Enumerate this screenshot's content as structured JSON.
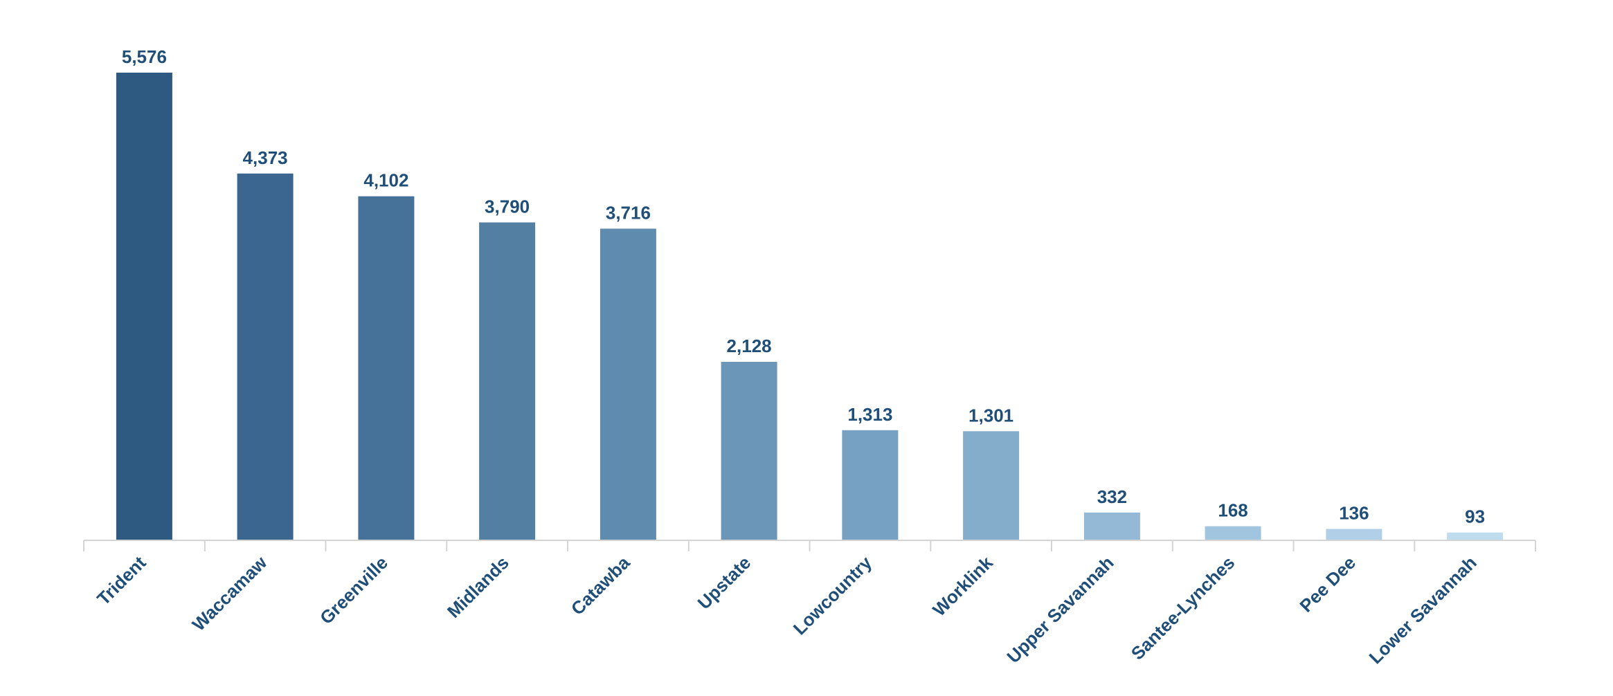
{
  "chart_data": {
    "type": "bar",
    "title": "",
    "xlabel": "",
    "ylabel": "",
    "categories": [
      "Trident",
      "Waccamaw",
      "Greenville",
      "Midlands",
      "Catawba",
      "Upstate",
      "Lowcountry",
      "Worklink",
      "Upper Savannah",
      "Santee-Lynches",
      "Pee Dee",
      "Lower Savannah"
    ],
    "values": [
      5576,
      4373,
      4102,
      3790,
      3716,
      2128,
      1313,
      1301,
      332,
      168,
      136,
      93
    ],
    "value_labels": [
      "5,576",
      "4,373",
      "4,102",
      "3,790",
      "3,716",
      "2,128",
      "1,313",
      "1,301",
      "332",
      "168",
      "136",
      "93"
    ],
    "ylim": [
      0,
      5576
    ],
    "grid": false,
    "legend": "none",
    "bar_colors": [
      "#2e5a82",
      "#3a6690",
      "#46729a",
      "#527fa2",
      "#5f8bae",
      "#6b96b8",
      "#77a1c2",
      "#84accb",
      "#93b9d6",
      "#a2c5df",
      "#b1d0e7",
      "#c0dcef"
    ],
    "label_color": "#1f4e79",
    "axis_color": "#d4d4d4"
  }
}
